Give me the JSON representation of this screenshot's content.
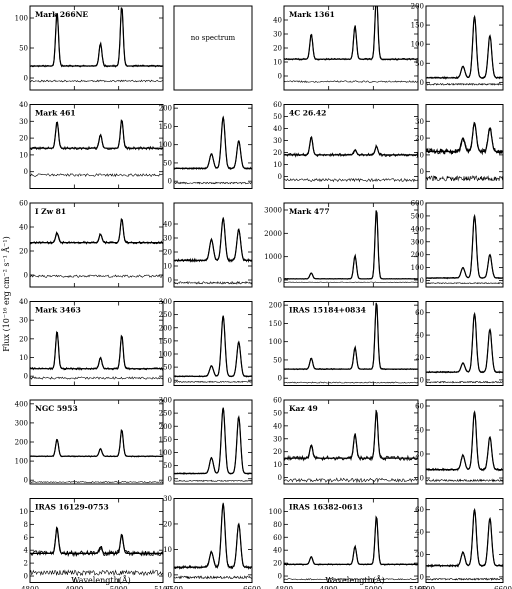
{
  "figure": {
    "ylabel": "Flux (10⁻¹⁶ erg cm⁻² s⁻¹ Å⁻¹)",
    "xlabel": "Wavelength(Å)",
    "no_spectrum": "no spectrum"
  },
  "chart_data": {
    "type": "line",
    "xlabel": "Wavelength(Å)",
    "ylabel": "Flux (10⁻¹⁶ erg cm⁻² s⁻¹ Å⁻¹)",
    "xlim_hbeta": [
      4800,
      5100
    ],
    "xticks_hbeta": [
      4800,
      4900,
      5000,
      5100
    ],
    "xlim_halpha": [
      6500,
      6600
    ],
    "xticks_halpha": [
      6500,
      6600
    ],
    "lines_hbeta": [
      4861,
      4959,
      5007
    ],
    "lines_halpha": [
      6548,
      6563,
      6583
    ],
    "panels": [
      {
        "object": "Mark 266NE",
        "row": 0,
        "block": 0,
        "hbeta": {
          "ylim": [
            -20,
            120
          ],
          "yticks": [
            0,
            50,
            100
          ],
          "continuum": 20,
          "peaks": [
            90,
            38,
            100
          ],
          "resid_base": -5,
          "noise": 1.5
        },
        "halpha": null
      },
      {
        "object": "Mark 1361",
        "row": 0,
        "block": 1,
        "hbeta": {
          "ylim": [
            -10,
            50
          ],
          "yticks": [
            0,
            10,
            20,
            30,
            40
          ],
          "continuum": 12,
          "peaks": [
            18,
            24,
            46
          ],
          "resid_base": -4,
          "noise": 0.6
        },
        "halpha": {
          "ylim": [
            -20,
            200
          ],
          "yticks": [
            0,
            50,
            100,
            150,
            200
          ],
          "continuum": 12,
          "peaks": [
            30,
            160,
            110
          ],
          "resid_base": -5,
          "noise": 2
        }
      },
      {
        "object": "Mark 461",
        "row": 1,
        "block": 0,
        "hbeta": {
          "ylim": [
            -10,
            40
          ],
          "yticks": [
            0,
            10,
            20,
            30,
            40
          ],
          "continuum": 14,
          "peaks": [
            16,
            8,
            17
          ],
          "resid_base": -2,
          "noise": 0.8
        },
        "halpha": {
          "ylim": [
            -20,
            210
          ],
          "yticks": [
            0,
            50,
            100,
            150,
            200
          ],
          "continuum": 35,
          "peaks": [
            40,
            140,
            75
          ],
          "resid_base": -5,
          "noise": 2
        }
      },
      {
        "object": "4C 26.42",
        "row": 1,
        "block": 1,
        "hbeta": {
          "ylim": [
            -10,
            60
          ],
          "yticks": [
            0,
            10,
            20,
            30,
            40,
            50,
            60
          ],
          "continuum": 18,
          "peaks": [
            15,
            4,
            7
          ],
          "resid_base": -3,
          "noise": 1.2
        },
        "halpha": {
          "ylim": [
            -10,
            40
          ],
          "yticks": [
            0,
            10,
            20,
            30
          ],
          "continuum": 12,
          "peaks": [
            8,
            17,
            14
          ],
          "resid_base": -4,
          "noise": 1.5
        }
      },
      {
        "object": "I Zw 81",
        "row": 2,
        "block": 0,
        "hbeta": {
          "ylim": [
            -10,
            60
          ],
          "yticks": [
            0,
            20,
            40,
            60
          ],
          "continuum": 27,
          "peaks": [
            8,
            7,
            20
          ],
          "resid_base": -1,
          "noise": 1
        },
        "halpha": {
          "ylim": [
            -5,
            55
          ],
          "yticks": [
            0,
            10,
            20,
            30,
            40
          ],
          "continuum": 14,
          "peaks": [
            15,
            30,
            22
          ],
          "resid_base": -2,
          "noise": 0.8
        }
      },
      {
        "object": "Mark 477",
        "row": 2,
        "block": 1,
        "hbeta": {
          "ylim": [
            -300,
            3300
          ],
          "yticks": [
            0,
            1000,
            2000,
            3000
          ],
          "continuum": 50,
          "peaks": [
            250,
            1000,
            3000
          ],
          "resid_base": -100,
          "noise": 15
        },
        "halpha": {
          "ylim": [
            -50,
            600
          ],
          "yticks": [
            0,
            100,
            200,
            300,
            400,
            500,
            600
          ],
          "continuum": 20,
          "peaks": [
            80,
            480,
            180
          ],
          "resid_base": -20,
          "noise": 4
        }
      },
      {
        "object": "Mark 3463",
        "row": 3,
        "block": 0,
        "hbeta": {
          "ylim": [
            -5,
            40
          ],
          "yticks": [
            0,
            10,
            20,
            30,
            40
          ],
          "continuum": 4,
          "peaks": [
            20,
            6,
            18
          ],
          "resid_base": -1,
          "noise": 0.6
        },
        "halpha": {
          "ylim": [
            -20,
            300
          ],
          "yticks": [
            0,
            50,
            100,
            150,
            200,
            250,
            300
          ],
          "continuum": 15,
          "peaks": [
            40,
            230,
            130
          ],
          "resid_base": -6,
          "noise": 2
        }
      },
      {
        "object": "IRAS 15184+0834",
        "row": 3,
        "block": 1,
        "hbeta": {
          "ylim": [
            -20,
            210
          ],
          "yticks": [
            0,
            50,
            100,
            150,
            200
          ],
          "continuum": 25,
          "peaks": [
            30,
            60,
            185
          ],
          "resid_base": -12,
          "noise": 1.5
        },
        "halpha": {
          "ylim": [
            -5,
            70
          ],
          "yticks": [
            0,
            20,
            40,
            60
          ],
          "continuum": 7,
          "peaks": [
            8,
            52,
            38
          ],
          "resid_base": -2,
          "noise": 0.6
        }
      },
      {
        "object": "NGC 5953",
        "row": 4,
        "block": 0,
        "hbeta": {
          "ylim": [
            -20,
            420
          ],
          "yticks": [
            0,
            100,
            200,
            300,
            400
          ],
          "continuum": 125,
          "peaks": [
            90,
            40,
            140
          ],
          "resid_base": -10,
          "noise": 3
        },
        "halpha": {
          "ylim": [
            -20,
            300
          ],
          "yticks": [
            0,
            50,
            100,
            150,
            200,
            250,
            300
          ],
          "continuum": 20,
          "peaks": [
            60,
            250,
            215
          ],
          "resid_base": -8,
          "noise": 2
        }
      },
      {
        "object": "Kaz 49",
        "row": 4,
        "block": 1,
        "hbeta": {
          "ylim": [
            -5,
            60
          ],
          "yticks": [
            0,
            10,
            20,
            30,
            40,
            50,
            60
          ],
          "continuum": 15,
          "peaks": [
            10,
            19,
            37
          ],
          "resid_base": -2,
          "noise": 1.5
        },
        "halpha": {
          "ylim": [
            -5,
            65
          ],
          "yticks": [
            0,
            20,
            40,
            60
          ],
          "continuum": 7,
          "peaks": [
            12,
            48,
            27
          ],
          "resid_base": -2,
          "noise": 0.8
        }
      },
      {
        "object": "IRAS 16129-0753",
        "row": 5,
        "block": 0,
        "hbeta": {
          "ylim": [
            -1,
            12
          ],
          "yticks": [
            0,
            2,
            4,
            6,
            8,
            10
          ],
          "continuum": 3.5,
          "peaks": [
            4,
            1,
            3
          ],
          "resid_base": 0.5,
          "noise": 0.4
        },
        "halpha": {
          "ylim": [
            -3,
            30
          ],
          "yticks": [
            0,
            10,
            20,
            30
          ],
          "continuum": 3,
          "peaks": [
            6,
            25,
            17
          ],
          "resid_base": -1,
          "noise": 0.5
        }
      },
      {
        "object": "IRAS 16382-0613",
        "row": 5,
        "block": 1,
        "hbeta": {
          "ylim": [
            -10,
            120
          ],
          "yticks": [
            0,
            20,
            40,
            60,
            80,
            100
          ],
          "continuum": 18,
          "peaks": [
            12,
            28,
            75
          ],
          "resid_base": -5,
          "noise": 1
        },
        "halpha": {
          "ylim": [
            -5,
            70
          ],
          "yticks": [
            0,
            20,
            40,
            60
          ],
          "continuum": 10,
          "peaks": [
            12,
            50,
            42
          ],
          "resid_base": -2,
          "noise": 0.8
        }
      }
    ]
  }
}
